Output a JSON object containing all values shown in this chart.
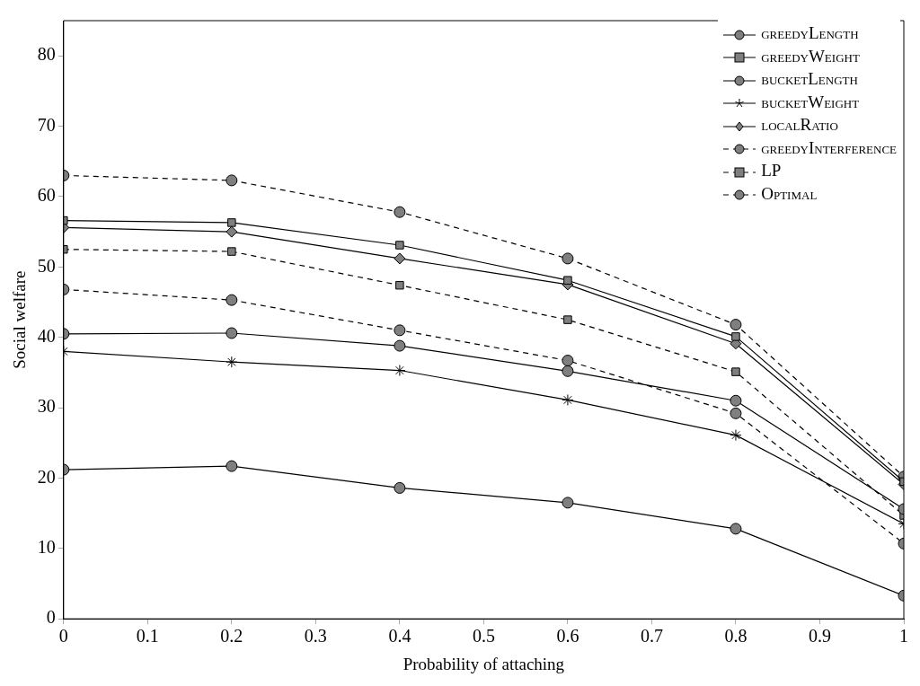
{
  "chart_data": {
    "type": "line",
    "xlabel": "Probability of attaching",
    "ylabel": "Social welfare",
    "x": [
      0,
      0.2,
      0.4,
      0.6,
      0.8,
      1
    ],
    "xlim": [
      0,
      1
    ],
    "xticks": [
      0,
      0.1,
      0.2,
      0.3,
      0.4,
      0.5,
      0.6,
      0.7,
      0.8,
      0.9,
      1
    ],
    "ylim": [
      0,
      85
    ],
    "yticks": [
      0,
      10,
      20,
      30,
      40,
      50,
      60,
      70,
      80
    ],
    "grid": false,
    "legend": "top right",
    "series": [
      {
        "name": "greedyLength",
        "color": "#000000",
        "marker": "circle",
        "line_style": "solid",
        "values": [
          21.2,
          21.7,
          18.6,
          16.5,
          12.8,
          3.3
        ]
      },
      {
        "name": "greedyWeight",
        "color": "#000000",
        "marker": "square",
        "line_style": "solid",
        "values": [
          56.6,
          56.3,
          53.1,
          48.1,
          40.1,
          19.5
        ]
      },
      {
        "name": "bucketLength",
        "color": "#000000",
        "marker": "circle",
        "line_style": "solid",
        "values": [
          40.5,
          40.6,
          38.8,
          35.2,
          31.0,
          15.6
        ]
      },
      {
        "name": "bucketWeight",
        "color": "#000000",
        "marker": "cross",
        "line_style": "solid",
        "values": [
          38.0,
          36.5,
          35.3,
          31.1,
          26.1,
          13.5
        ]
      },
      {
        "name": "localRatio",
        "color": "#000000",
        "marker": "diamond",
        "line_style": "solid",
        "values": [
          55.6,
          55.0,
          51.2,
          47.5,
          39.1,
          19.1
        ]
      },
      {
        "name": "greedyInterference",
        "color": "#000000",
        "marker": "circle",
        "line_style": "dashed",
        "values": [
          46.8,
          45.3,
          41.0,
          36.7,
          29.2,
          10.7
        ]
      },
      {
        "name": "LP",
        "color": "#000000",
        "marker": "square",
        "line_style": "dashed",
        "values": [
          52.5,
          52.2,
          47.4,
          42.5,
          35.1,
          14.7
        ]
      },
      {
        "name": "Optimal",
        "color": "#000000",
        "marker": "circle",
        "line_style": "dashed",
        "values": [
          63.0,
          62.3,
          57.8,
          51.2,
          41.8,
          20.2
        ]
      }
    ]
  }
}
